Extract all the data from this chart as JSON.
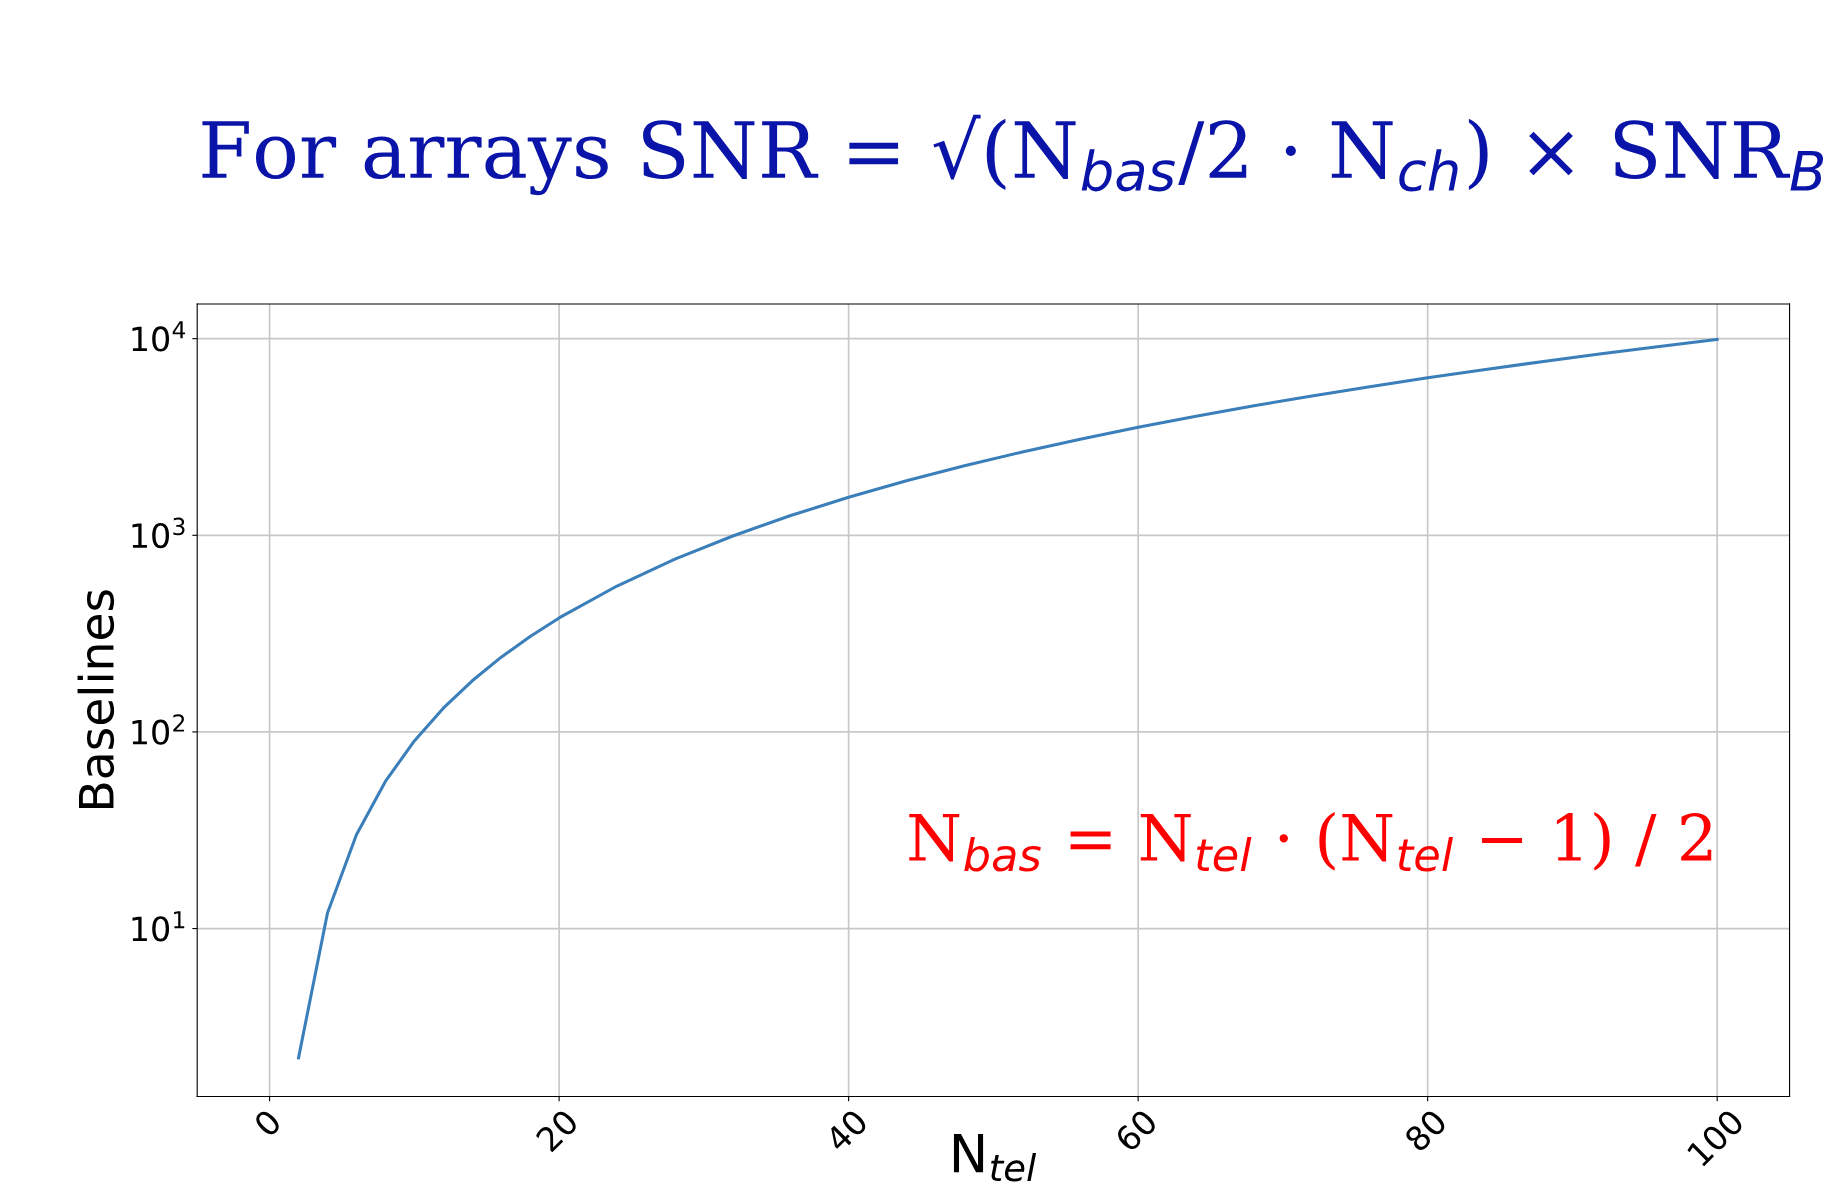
{
  "chart_data": {
    "type": "line",
    "title": "For arrays SNR = √(N$_{bas}$/2 · N$_{ch}$) × SNR$_{B}$",
    "xlabel": "N$_{tel}$",
    "ylabel": "Baselines",
    "annotations": [
      "N$_{bas}$ = N$_{tel}$ · (N$_{tel}$ − 1) / 2"
    ],
    "series": [
      {
        "color": "#3b7fba",
        "x": [
          2,
          4,
          6,
          8,
          10,
          12,
          14,
          16,
          18,
          20,
          24,
          28,
          32,
          36,
          40,
          44,
          48,
          52,
          56,
          60,
          64,
          68,
          72,
          76,
          80,
          84,
          88,
          92,
          96,
          100
        ],
        "values": [
          2.2,
          12,
          30,
          56,
          90,
          132,
          182,
          240,
          306,
          380,
          552,
          756,
          992,
          1260,
          1560,
          1892,
          2256,
          2652,
          3080,
          3540,
          4032,
          4556,
          5112,
          5700,
          6320,
          6972,
          7656,
          8372,
          9120,
          9900
        ]
      }
    ],
    "xlim": [
      -5,
      105
    ],
    "xticks": [
      0,
      20,
      40,
      60,
      80,
      100
    ],
    "ylim": [
      1.4,
      15000
    ],
    "yticks": [
      {
        "value": 10,
        "label": "10$^{1}$"
      },
      {
        "value": 100,
        "label": "10$^{2}$"
      },
      {
        "value": 1000,
        "label": "10$^{3}$"
      },
      {
        "value": 10000,
        "label": "10$^{4}$"
      }
    ],
    "log": "y",
    "grid": true,
    "marker": "none",
    "line_style": "solid"
  }
}
